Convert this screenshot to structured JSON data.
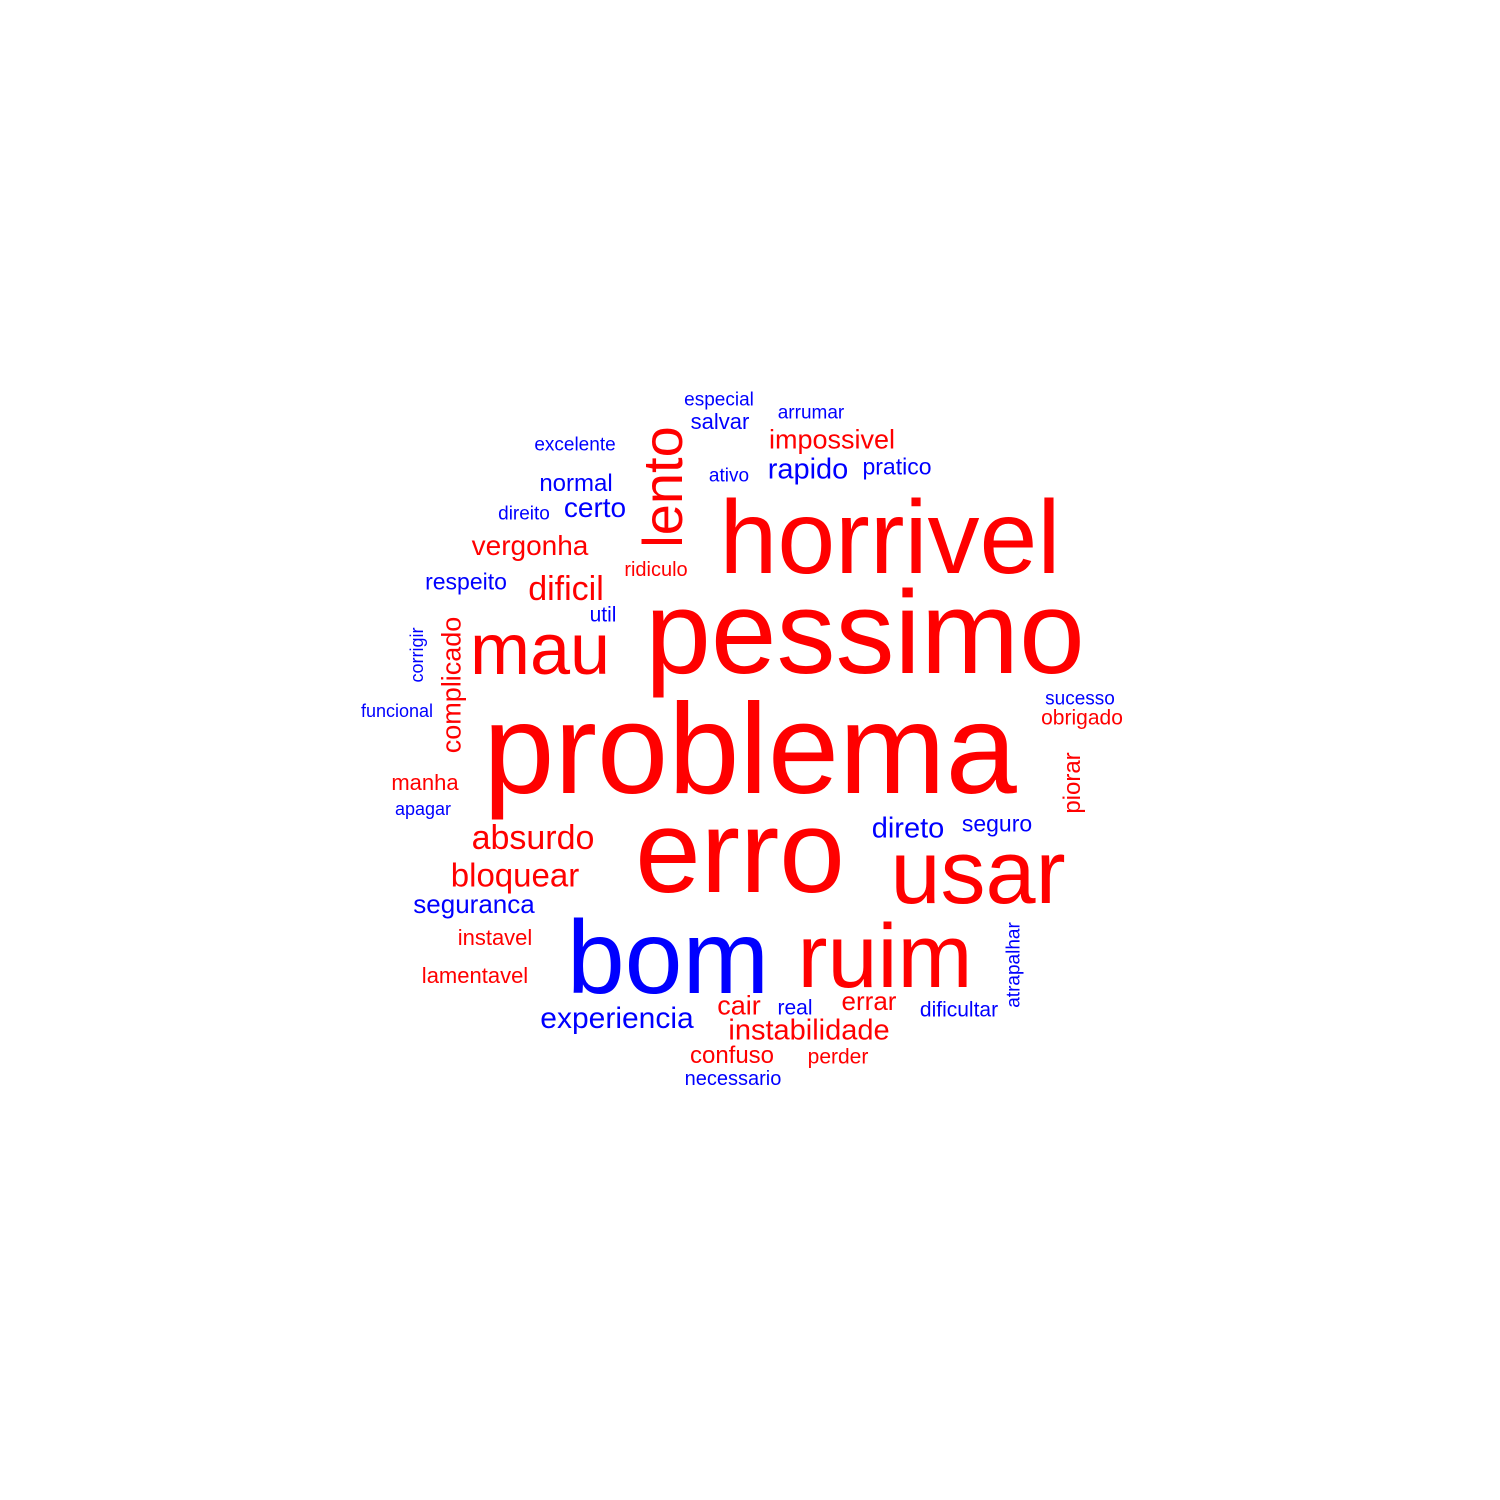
{
  "colors": {
    "negative": "#ff0000",
    "positive": "#0000ff"
  },
  "words": [
    {
      "text": "pessimo",
      "polarity": "negative"
    },
    {
      "text": "problema",
      "polarity": "negative"
    },
    {
      "text": "erro",
      "polarity": "negative"
    },
    {
      "text": "horrivel",
      "polarity": "negative"
    },
    {
      "text": "usar",
      "polarity": "negative"
    },
    {
      "text": "bom",
      "polarity": "positive"
    },
    {
      "text": "ruim",
      "polarity": "negative"
    },
    {
      "text": "mau",
      "polarity": "negative"
    },
    {
      "text": "lento",
      "polarity": "negative"
    },
    {
      "text": "absurdo",
      "polarity": "negative"
    },
    {
      "text": "bloquear",
      "polarity": "negative"
    },
    {
      "text": "dificil",
      "polarity": "negative"
    },
    {
      "text": "instabilidade",
      "polarity": "negative"
    },
    {
      "text": "experiencia",
      "polarity": "positive"
    },
    {
      "text": "rapido",
      "polarity": "positive"
    },
    {
      "text": "direto",
      "polarity": "positive"
    },
    {
      "text": "vergonha",
      "polarity": "negative"
    },
    {
      "text": "impossivel",
      "polarity": "negative"
    },
    {
      "text": "complicado",
      "polarity": "negative"
    },
    {
      "text": "seguranca",
      "polarity": "positive"
    },
    {
      "text": "certo",
      "polarity": "positive"
    },
    {
      "text": "cair",
      "polarity": "negative"
    },
    {
      "text": "errar",
      "polarity": "negative"
    },
    {
      "text": "confuso",
      "polarity": "negative"
    },
    {
      "text": "normal",
      "polarity": "positive"
    },
    {
      "text": "piorar",
      "polarity": "negative"
    },
    {
      "text": "pratico",
      "polarity": "positive"
    },
    {
      "text": "respeito",
      "polarity": "positive"
    },
    {
      "text": "seguro",
      "polarity": "positive"
    },
    {
      "text": "salvar",
      "polarity": "positive"
    },
    {
      "text": "instavel",
      "polarity": "negative"
    },
    {
      "text": "lamentavel",
      "polarity": "negative"
    },
    {
      "text": "manha",
      "polarity": "negative"
    },
    {
      "text": "ridiculo",
      "polarity": "negative"
    },
    {
      "text": "obrigado",
      "polarity": "negative"
    },
    {
      "text": "perder",
      "polarity": "negative"
    },
    {
      "text": "dificultar",
      "polarity": "positive"
    },
    {
      "text": "atrapalhar",
      "polarity": "positive"
    },
    {
      "text": "real",
      "polarity": "positive"
    },
    {
      "text": "necessario",
      "polarity": "positive"
    },
    {
      "text": "util",
      "polarity": "positive"
    },
    {
      "text": "sucesso",
      "polarity": "positive"
    },
    {
      "text": "excelente",
      "polarity": "positive"
    },
    {
      "text": "especial",
      "polarity": "positive"
    },
    {
      "text": "arrumar",
      "polarity": "positive"
    },
    {
      "text": "ativo",
      "polarity": "positive"
    },
    {
      "text": "direito",
      "polarity": "positive"
    },
    {
      "text": "corrigir",
      "polarity": "positive"
    },
    {
      "text": "funcional",
      "polarity": "positive"
    },
    {
      "text": "apagar",
      "polarity": "positive"
    }
  ]
}
